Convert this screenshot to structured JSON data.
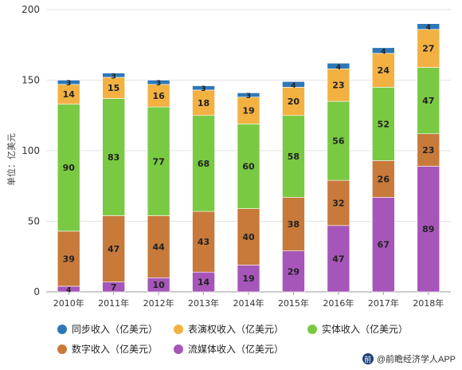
{
  "chart_data": {
    "type": "bar",
    "stacked": true,
    "categories": [
      "2010年",
      "2011年",
      "2012年",
      "2013年",
      "2014年",
      "2015年",
      "2016年",
      "2017年",
      "2018年"
    ],
    "ylabel": "单位：亿美元",
    "ylim": [
      0,
      200
    ],
    "yticks": [
      "0",
      "50",
      "100",
      "150",
      "200"
    ],
    "grid": true,
    "legend_position": "bottom",
    "series": [
      {
        "name": "流媒体收入（亿美元）",
        "color": "#a656b8",
        "values": [
          4,
          7,
          10,
          14,
          19,
          29,
          47,
          67,
          89
        ]
      },
      {
        "name": "数字收入（亿美元）",
        "color": "#c77a3a",
        "values": [
          39,
          47,
          44,
          43,
          40,
          38,
          32,
          26,
          23
        ]
      },
      {
        "name": "实体收入（亿美元）",
        "color": "#7ac943",
        "values": [
          90,
          83,
          77,
          68,
          60,
          58,
          56,
          52,
          47
        ]
      },
      {
        "name": "表演权收入（亿美元）",
        "color": "#f2b141",
        "values": [
          14,
          15,
          16,
          18,
          19,
          20,
          23,
          24,
          27
        ]
      },
      {
        "name": "同步收入（亿美元）",
        "color": "#2f78b7",
        "values": [
          3,
          3,
          3,
          3,
          3,
          4,
          4,
          4,
          4
        ]
      }
    ]
  },
  "legend": {
    "items": [
      {
        "label": "同步收入（亿美元）",
        "color": "#2f78b7"
      },
      {
        "label": "表演权收入（亿美元）",
        "color": "#f2b141"
      },
      {
        "label": "实体收入（亿美元）",
        "color": "#7ac943"
      },
      {
        "label": "数字收入（亿美元）",
        "color": "#c77a3a"
      },
      {
        "label": "流媒体收入（亿美元）",
        "color": "#a656b8"
      }
    ]
  },
  "brand": {
    "icon": "qian-logo-icon",
    "text": "@前瞻经济学人APP"
  }
}
